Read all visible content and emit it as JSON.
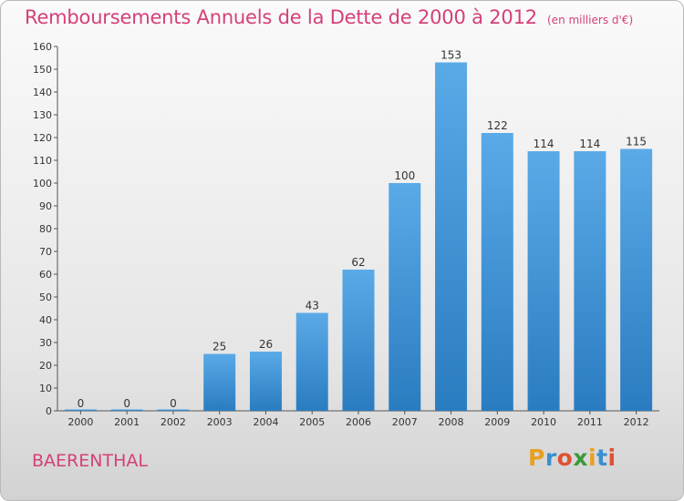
{
  "chart_data": {
    "type": "bar",
    "title": "Remboursements Annuels de la Dette de 2000 à 2012",
    "subtitle": "(en milliers d'€)",
    "categories": [
      "2000",
      "2001",
      "2002",
      "2003",
      "2004",
      "2005",
      "2006",
      "2007",
      "2008",
      "2009",
      "2010",
      "2011",
      "2012"
    ],
    "values": [
      0,
      0,
      0,
      25,
      26,
      43,
      62,
      100,
      153,
      122,
      114,
      114,
      115
    ],
    "ylim": [
      0,
      160
    ],
    "yticks": [
      0,
      10,
      20,
      30,
      40,
      50,
      60,
      70,
      80,
      90,
      100,
      110,
      120,
      130,
      140,
      150,
      160
    ],
    "grid": false,
    "xlabel": "",
    "ylabel": ""
  },
  "commune": "BAERENTHAL",
  "logo": {
    "letters": [
      "P",
      "r",
      "o",
      "x",
      "i",
      "t",
      "i"
    ],
    "colors": [
      "#e8a020",
      "#3a8fd0",
      "#e05030",
      "#3a9a3a",
      "#e8a020",
      "#3a8fd0",
      "#e05030"
    ]
  },
  "colors": {
    "bar_top": "#5aaae8",
    "bar_bottom": "#2a7cc0",
    "accent": "#d4407a"
  }
}
